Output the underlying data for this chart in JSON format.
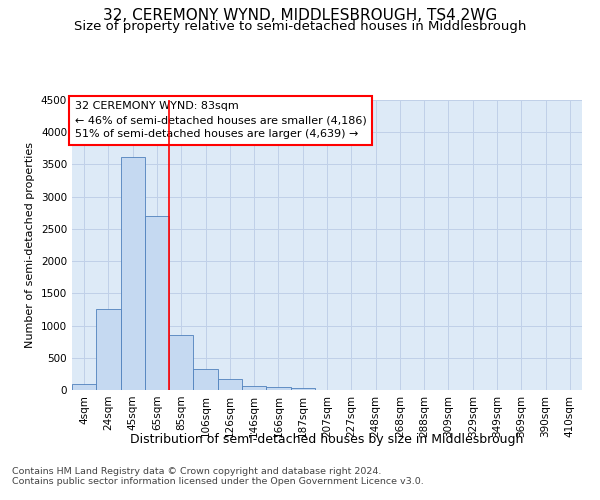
{
  "title": "32, CEREMONY WYND, MIDDLESBROUGH, TS4 2WG",
  "subtitle": "Size of property relative to semi-detached houses in Middlesbrough",
  "xlabel": "Distribution of semi-detached houses by size in Middlesbrough",
  "ylabel": "Number of semi-detached properties",
  "footer_line1": "Contains HM Land Registry data © Crown copyright and database right 2024.",
  "footer_line2": "Contains public sector information licensed under the Open Government Licence v3.0.",
  "bar_labels": [
    "4sqm",
    "24sqm",
    "45sqm",
    "65sqm",
    "85sqm",
    "106sqm",
    "126sqm",
    "146sqm",
    "166sqm",
    "187sqm",
    "207sqm",
    "227sqm",
    "248sqm",
    "268sqm",
    "288sqm",
    "309sqm",
    "329sqm",
    "349sqm",
    "369sqm",
    "390sqm",
    "410sqm"
  ],
  "bar_values": [
    100,
    1250,
    3620,
    2700,
    850,
    330,
    165,
    65,
    45,
    35,
    0,
    0,
    0,
    0,
    0,
    0,
    0,
    0,
    0,
    0,
    0
  ],
  "bar_color": "#c5d9f1",
  "bar_edge_color": "#4f81bd",
  "red_line_bar_index": 3,
  "annotation_line1": "32 CEREMONY WYND: 83sqm",
  "annotation_line2": "← 46% of semi-detached houses are smaller (4,186)",
  "annotation_line3": "51% of semi-detached houses are larger (4,639) →",
  "annotation_box_color": "white",
  "annotation_border_color": "red",
  "ylim_max": 4500,
  "yticks": [
    0,
    500,
    1000,
    1500,
    2000,
    2500,
    3000,
    3500,
    4000,
    4500
  ],
  "grid_color": "#c0d0e8",
  "bg_color": "#ddeaf7",
  "title_fontsize": 11,
  "subtitle_fontsize": 9.5,
  "xlabel_fontsize": 9,
  "ylabel_fontsize": 8,
  "tick_fontsize": 7.5,
  "annotation_fontsize": 8,
  "footer_fontsize": 6.8
}
